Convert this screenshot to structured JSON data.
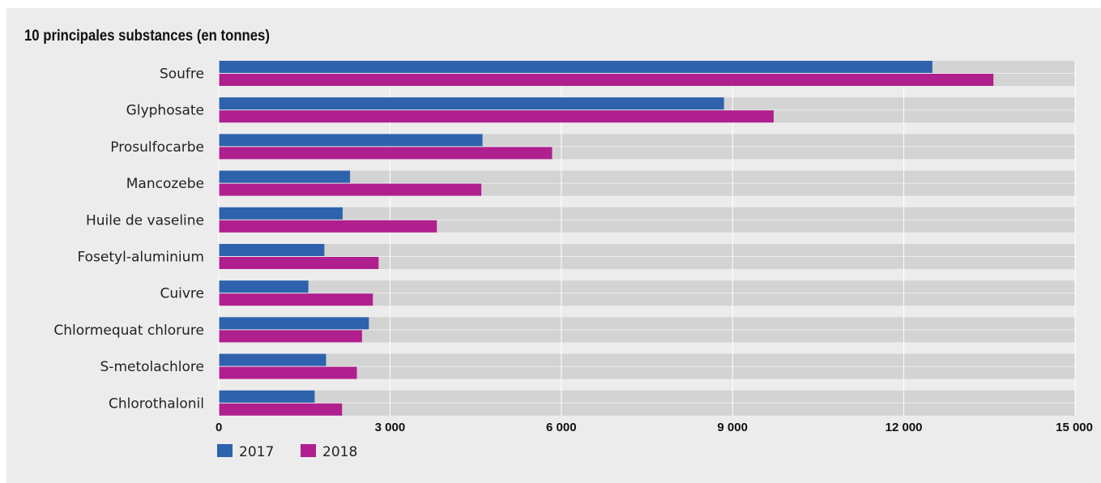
{
  "colors": {
    "s2017": "#2e62ad",
    "s2018": "#b01f8e",
    "track": "#d3d3d3",
    "grid": "#ffffff"
  },
  "chart_data": {
    "type": "bar",
    "orientation": "horizontal",
    "title": "10 principales substances (en tonnes)",
    "categories": [
      "Soufre",
      "Glyphosate",
      "Prosulfocarbe",
      "Mancozebe",
      "Huile de vaseline",
      "Fosetyl-aluminium",
      "Cuivre",
      "Chlormequat chlorure",
      "S-metolachlore",
      "Chlorothalonil"
    ],
    "series": [
      {
        "name": "2017",
        "values": [
          12500,
          8850,
          4620,
          2300,
          2170,
          1850,
          1570,
          2630,
          1880,
          1680
        ]
      },
      {
        "name": "2018",
        "values": [
          13570,
          9720,
          5840,
          4600,
          3820,
          2800,
          2700,
          2510,
          2420,
          2160
        ]
      }
    ],
    "xlim": [
      0,
      15000
    ],
    "xticks": [
      {
        "value": 0,
        "label": "0"
      },
      {
        "value": 3000,
        "label": "3 000"
      },
      {
        "value": 6000,
        "label": "6 000"
      },
      {
        "value": 9000,
        "label": "9 000"
      },
      {
        "value": 12000,
        "label": "12 000"
      },
      {
        "value": 15000,
        "label": "15 000"
      }
    ],
    "grid": true,
    "legend": "bottom-left"
  }
}
